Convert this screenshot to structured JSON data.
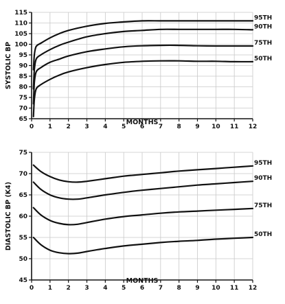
{
  "chart_data": [
    {
      "type": "line",
      "title": "",
      "xlabel": "MONTHS",
      "ylabel": "SYSTOLIC BP",
      "xlim": [
        0,
        12
      ],
      "ylim": [
        65,
        115
      ],
      "x_ticks": [
        0,
        1,
        2,
        3,
        4,
        5,
        6,
        7,
        8,
        9,
        10,
        11,
        12
      ],
      "y_ticks": [
        65,
        70,
        75,
        80,
        85,
        90,
        95,
        100,
        105,
        110,
        115
      ],
      "grid": true,
      "series": [
        {
          "name": "95TH",
          "x": [
            0.1,
            0.15,
            0.25,
            0.5,
            1,
            1.5,
            2,
            3,
            4,
            5,
            6,
            7,
            8,
            9,
            10,
            11,
            12
          ],
          "y": [
            88,
            95,
            99,
            100.5,
            103,
            105,
            106.5,
            108.5,
            109.8,
            110.5,
            111,
            111,
            111,
            111,
            111,
            111,
            111
          ]
        },
        {
          "name": "90TH",
          "x": [
            0.1,
            0.15,
            0.25,
            0.5,
            1,
            1.5,
            2,
            3,
            4,
            5,
            6,
            7,
            8,
            9,
            10,
            11,
            12
          ],
          "y": [
            79,
            88,
            93,
            95,
            97.5,
            99.5,
            101,
            103.5,
            105,
            106,
            106.5,
            107,
            107,
            107,
            107,
            107,
            106.8
          ]
        },
        {
          "name": "75TH",
          "x": [
            0.1,
            0.15,
            0.25,
            0.5,
            1,
            1.5,
            2,
            3,
            4,
            5,
            6,
            7,
            8,
            9,
            10,
            11,
            12
          ],
          "y": [
            72,
            82,
            87,
            89,
            91.5,
            93,
            94.5,
            96.5,
            97.8,
            98.8,
            99.3,
            99.5,
            99.5,
            99.3,
            99.2,
            99.2,
            99.2
          ]
        },
        {
          "name": "50TH",
          "x": [
            0.1,
            0.15,
            0.25,
            0.5,
            1,
            1.5,
            2,
            3,
            4,
            5,
            6,
            7,
            8,
            9,
            10,
            11,
            12
          ],
          "y": [
            66,
            74,
            79,
            81,
            83.5,
            85.5,
            87,
            89,
            90.5,
            91.5,
            92,
            92.2,
            92.2,
            92,
            92,
            91.8,
            91.8
          ]
        }
      ]
    },
    {
      "type": "line",
      "title": "",
      "xlabel": "MONTHS",
      "ylabel": "DIASTOLIC BP (K4)",
      "xlim": [
        0,
        12
      ],
      "ylim": [
        45,
        75
      ],
      "x_ticks": [
        0,
        1,
        2,
        3,
        4,
        5,
        6,
        7,
        8,
        9,
        10,
        11,
        12
      ],
      "y_ticks": [
        45,
        50,
        55,
        60,
        65,
        70,
        75
      ],
      "grid": true,
      "series": [
        {
          "name": "95TH",
          "x": [
            0.1,
            0.5,
            1,
            1.5,
            2,
            2.5,
            3,
            4,
            5,
            6,
            7,
            8,
            9,
            10,
            11,
            12
          ],
          "y": [
            72,
            70.5,
            69.3,
            68.5,
            68.1,
            68,
            68.2,
            68.8,
            69.4,
            69.8,
            70.2,
            70.6,
            70.9,
            71.2,
            71.5,
            71.8
          ]
        },
        {
          "name": "90TH",
          "x": [
            0.1,
            0.5,
            1,
            1.5,
            2,
            2.5,
            3,
            4,
            5,
            6,
            7,
            8,
            9,
            10,
            11,
            12
          ],
          "y": [
            68,
            66.3,
            65,
            64.3,
            64,
            64,
            64.3,
            65,
            65.6,
            66.1,
            66.5,
            66.9,
            67.3,
            67.6,
            67.9,
            68.2
          ]
        },
        {
          "name": "75TH",
          "x": [
            0.1,
            0.5,
            1,
            1.5,
            2,
            2.5,
            3,
            4,
            5,
            6,
            7,
            8,
            9,
            10,
            11,
            12
          ],
          "y": [
            62,
            60.3,
            59,
            58.3,
            58,
            58.1,
            58.5,
            59.3,
            59.9,
            60.3,
            60.7,
            61,
            61.2,
            61.4,
            61.6,
            61.8
          ]
        },
        {
          "name": "50TH",
          "x": [
            0.1,
            0.5,
            1,
            1.5,
            2,
            2.5,
            3,
            4,
            5,
            6,
            7,
            8,
            9,
            10,
            11,
            12
          ],
          "y": [
            55,
            53.3,
            52,
            51.4,
            51.2,
            51.3,
            51.7,
            52.4,
            53,
            53.4,
            53.8,
            54.1,
            54.3,
            54.6,
            54.8,
            55
          ]
        }
      ]
    }
  ]
}
